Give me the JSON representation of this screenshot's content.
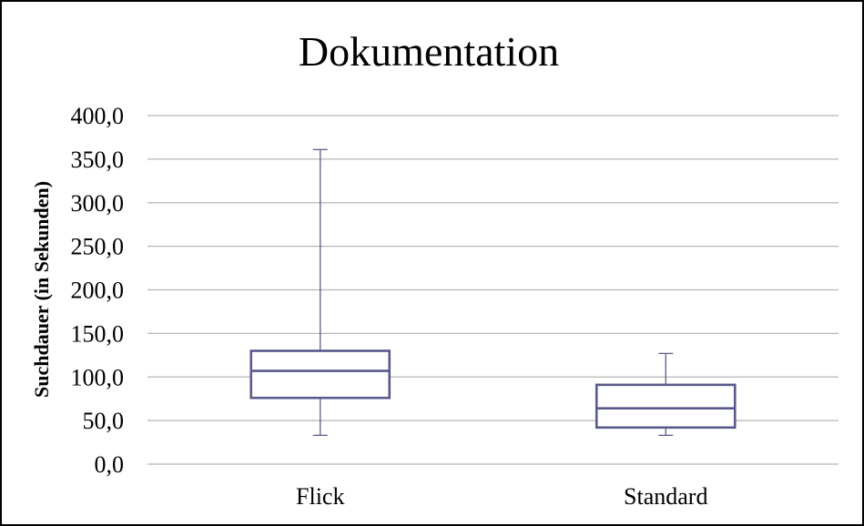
{
  "chart_data": {
    "type": "boxplot",
    "title": "Dokumentation",
    "xlabel": "",
    "ylabel": "Suchdauer (in Sekunden)",
    "ylim": [
      0,
      400
    ],
    "yticks": [
      0,
      50,
      100,
      150,
      200,
      250,
      300,
      350,
      400
    ],
    "ytick_labels": [
      "0,0",
      "50,0",
      "100,0",
      "150,0",
      "200,0",
      "250,0",
      "300,0",
      "350,0",
      "400,0"
    ],
    "grid": true,
    "categories": [
      "Flick",
      "Standard"
    ],
    "boxes": [
      {
        "label": "Flick",
        "min": 33,
        "q1": 76,
        "median": 107,
        "q3": 130,
        "max": 361
      },
      {
        "label": "Standard",
        "min": 33,
        "q1": 42,
        "median": 64,
        "q3": 91,
        "max": 127
      }
    ],
    "colors": {
      "box": "#5a5a8c",
      "grid": "#b5b5b5",
      "text": "#000000",
      "border": "#000000"
    }
  }
}
